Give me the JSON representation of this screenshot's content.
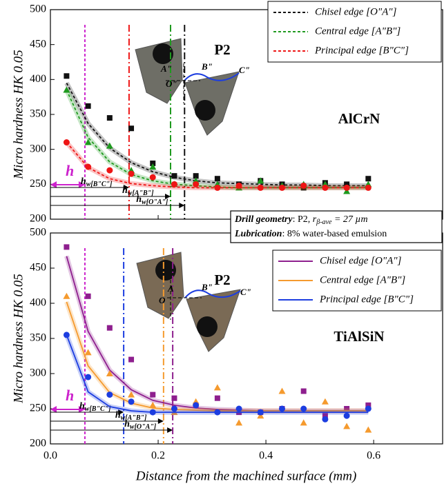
{
  "chart_data": [
    {
      "type": "scatter",
      "ylabel": "Micro hardness HK 0.05",
      "xlim": [
        0,
        0.728
      ],
      "xticks": [
        0,
        0.2,
        0.4,
        0.6
      ],
      "ylim": [
        200,
        500
      ],
      "yticks": [
        200,
        250,
        300,
        350,
        400,
        450,
        500
      ],
      "legend": "upper right",
      "line_style": "dashed",
      "material": "AlCrN",
      "drill_label": "P2",
      "drill_points": [
        "A\"",
        "B\"",
        "C\"",
        "O\""
      ],
      "x": [
        0.03,
        0.07,
        0.11,
        0.15,
        0.19,
        0.23,
        0.27,
        0.31,
        0.35,
        0.39,
        0.43,
        0.47,
        0.51,
        0.55,
        0.59
      ],
      "series": [
        {
          "name": "Chisel edge [O\"A\"]",
          "color": "#111111",
          "marker": "square",
          "values": [
            405,
            362,
            345,
            330,
            280,
            262,
            262,
            258,
            250,
            255,
            250,
            245,
            252,
            250,
            258
          ],
          "fit": [
            395,
            337,
            302,
            281,
            268,
            260,
            255,
            252,
            251,
            250,
            249,
            249,
            248,
            248,
            248
          ]
        },
        {
          "name": "Central edge [A\"B\"]",
          "color": "#1e9a1e",
          "marker": "triangle",
          "values": [
            385,
            310,
            305,
            270,
            275,
            250,
            255,
            250,
            245,
            255,
            248,
            250,
            250,
            240,
            250
          ],
          "fit": [
            385,
            317,
            282,
            264,
            255,
            250,
            248,
            246,
            245,
            245,
            245,
            245,
            245,
            245,
            245
          ]
        },
        {
          "name": "Principal edge [B\"C\"]",
          "color": "#ee1515",
          "marker": "circle",
          "values": [
            310,
            275,
            270,
            265,
            260,
            250,
            250,
            245,
            248,
            245,
            245,
            248,
            245,
            245,
            245
          ],
          "fit": [
            310,
            274,
            258,
            251,
            248,
            246,
            245,
            245,
            245,
            245,
            245,
            245,
            245,
            245,
            245
          ]
        }
      ],
      "markers": [
        {
          "x": 0.064,
          "color": "#cc22cc"
        },
        {
          "x": 0.146,
          "color": "#ee1515"
        },
        {
          "x": 0.223,
          "color": "#1e9a1e"
        },
        {
          "x": 0.249,
          "color": "#111111"
        }
      ],
      "h": "h",
      "hw": [
        {
          "main": "h",
          "sub": "w[B\"C\"]"
        },
        {
          "main": "h",
          "sub": "w[A\"B\"]"
        },
        {
          "main": "h",
          "sub": "w[O\"A\"]"
        }
      ]
    },
    {
      "type": "scatter",
      "ylabel": "Micro hardness HK 0.05",
      "xlabel": "Distance from the machined surface (mm)",
      "xlim": [
        0,
        0.728
      ],
      "xticks": [
        {
          "value": 0,
          "label": "0.0"
        },
        0.2,
        0.4,
        0.6
      ],
      "ylim": [
        200,
        500
      ],
      "yticks": [
        200,
        250,
        300,
        350,
        400,
        450,
        500
      ],
      "legend": "upper right",
      "line_style": "solid",
      "material": "TiAlSiN",
      "drill_label": "P2",
      "drill_points": [
        "A",
        "B\"",
        "C\"",
        "O"
      ],
      "x": [
        0.03,
        0.07,
        0.11,
        0.15,
        0.19,
        0.23,
        0.27,
        0.31,
        0.35,
        0.39,
        0.43,
        0.47,
        0.51,
        0.55,
        0.59
      ],
      "series": [
        {
          "name": "Chisel edge [O\"A\"]",
          "color": "#8e1f8e",
          "marker": "square",
          "values": [
            480,
            410,
            365,
            320,
            270,
            265,
            255,
            265,
            245,
            245,
            250,
            275,
            240,
            250,
            255
          ],
          "fit": [
            467,
            360,
            305,
            277,
            262,
            255,
            251,
            249,
            248,
            247,
            247,
            247,
            247,
            247,
            247
          ]
        },
        {
          "name": "Central edge [A\"B\"]",
          "color": "#f59a2e",
          "marker": "triangle",
          "values": [
            410,
            330,
            300,
            270,
            255,
            245,
            260,
            280,
            230,
            240,
            275,
            230,
            260,
            225,
            220
          ],
          "fit": [
            402,
            311,
            273,
            258,
            251,
            249,
            248,
            247,
            247,
            247,
            247,
            247,
            247,
            247,
            247
          ]
        },
        {
          "name": "Principal edge [B\"C\"]",
          "color": "#1c3de0",
          "marker": "circle",
          "values": [
            355,
            295,
            270,
            260,
            245,
            250,
            255,
            245,
            250,
            245,
            250,
            250,
            235,
            240,
            250
          ],
          "fit": [
            355,
            274,
            253,
            247,
            245,
            245,
            245,
            245,
            245,
            245,
            245,
            245,
            245,
            245,
            245
          ]
        }
      ],
      "markers": [
        {
          "x": 0.064,
          "color": "#cc22cc"
        },
        {
          "x": 0.136,
          "color": "#1c3de0"
        },
        {
          "x": 0.21,
          "color": "#f59a2e"
        },
        {
          "x": 0.227,
          "color": "#8e1f8e"
        }
      ],
      "h": "h",
      "hw": [
        {
          "main": "h",
          "sub": "w[B\"C\"]"
        },
        {
          "main": "h",
          "sub": "w[A\"B\"]"
        },
        {
          "main": "h",
          "sub": "w[O\"A\"]"
        }
      ]
    }
  ],
  "note": {
    "label1": "Drill geometry",
    "text1a": ": P2, ",
    "r": "r",
    "r_sub": "β-ave",
    "text1b": " = 27 µm",
    "label2": "Lubrication",
    "text2": ": 8% water-based emulsion"
  }
}
